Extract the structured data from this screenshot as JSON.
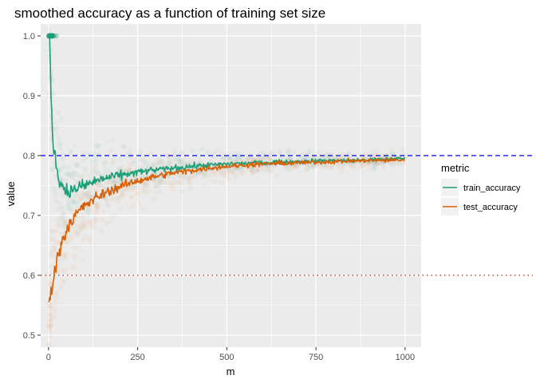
{
  "chart_data": {
    "type": "line",
    "title": "smoothed accuracy as a function of training set size",
    "xlabel": "m",
    "ylabel": "value",
    "xlim": [
      -22,
      1045
    ],
    "ylim": [
      0.48,
      1.02
    ],
    "x_ticks": [
      0,
      250,
      500,
      750,
      1000
    ],
    "y_ticks": [
      0.5,
      0.6,
      0.7,
      0.8,
      0.9,
      1.0
    ],
    "x_tick_labels": [
      "0",
      "250",
      "500",
      "750",
      "1000"
    ],
    "y_tick_labels": [
      "0.5",
      "0.6",
      "0.7",
      "0.8",
      "0.9",
      "1.0"
    ],
    "grid": true,
    "legend": {
      "title": "metric",
      "position": "right",
      "entries": [
        "train_accuracy",
        "test_accuracy"
      ]
    },
    "reference_lines": [
      {
        "y": 0.8,
        "style": "dashed",
        "color": "#0000ff"
      },
      {
        "y": 0.6,
        "style": "dotted",
        "color": "#b22222"
      }
    ],
    "series": [
      {
        "name": "train_accuracy",
        "color": "#1b9e77",
        "x": [
          1,
          3,
          5,
          7,
          9,
          11,
          14,
          17,
          20,
          25,
          30,
          40,
          50,
          60,
          75,
          90,
          110,
          130,
          150,
          175,
          200,
          250,
          300,
          350,
          400,
          450,
          500,
          550,
          600,
          650,
          700,
          750,
          800,
          850,
          900,
          950,
          1000
        ],
        "values": [
          1.0,
          0.99,
          0.95,
          0.91,
          0.87,
          0.84,
          0.82,
          0.8,
          0.79,
          0.775,
          0.76,
          0.748,
          0.742,
          0.74,
          0.744,
          0.748,
          0.752,
          0.757,
          0.761,
          0.764,
          0.767,
          0.772,
          0.776,
          0.779,
          0.782,
          0.784,
          0.786,
          0.787,
          0.788,
          0.789,
          0.79,
          0.791,
          0.792,
          0.792,
          0.793,
          0.794,
          0.795
        ]
      },
      {
        "name": "test_accuracy",
        "color": "#d95f02",
        "x": [
          1,
          3,
          5,
          7,
          9,
          11,
          14,
          17,
          20,
          25,
          30,
          40,
          50,
          60,
          75,
          90,
          110,
          130,
          150,
          175,
          200,
          250,
          300,
          350,
          400,
          450,
          500,
          550,
          600,
          650,
          700,
          750,
          800,
          850,
          900,
          950,
          1000
        ],
        "values": [
          0.552,
          0.558,
          0.565,
          0.572,
          0.58,
          0.588,
          0.598,
          0.607,
          0.615,
          0.628,
          0.64,
          0.66,
          0.675,
          0.688,
          0.7,
          0.71,
          0.72,
          0.728,
          0.735,
          0.742,
          0.748,
          0.758,
          0.765,
          0.771,
          0.775,
          0.779,
          0.782,
          0.784,
          0.786,
          0.787,
          0.788,
          0.789,
          0.79,
          0.791,
          0.792,
          0.792,
          0.793
        ]
      }
    ]
  }
}
